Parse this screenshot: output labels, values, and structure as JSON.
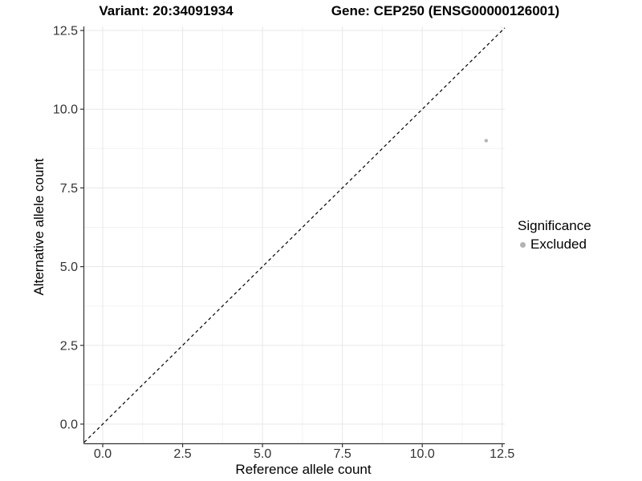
{
  "header": {
    "variant_title": "Variant: 20:34091934",
    "gene_title": "Gene: CEP250 (ENSG00000126001)"
  },
  "legend": {
    "title": "Significance",
    "items": [
      {
        "label": "Excluded",
        "color": "#b3b3b3"
      }
    ]
  },
  "chart_data": {
    "type": "scatter",
    "title_left": "Variant: 20:34091934",
    "title_right": "Gene: CEP250 (ENSG00000126001)",
    "xlabel": "Reference allele count",
    "ylabel": "Alternative allele count",
    "xlim": [
      -0.58,
      12.58
    ],
    "ylim": [
      -0.62,
      12.6
    ],
    "x_ticks": [
      0,
      2.5,
      5,
      7.5,
      10,
      12.5
    ],
    "y_ticks": [
      0,
      2.5,
      5,
      7.5,
      10,
      12.5
    ],
    "x_tick_labels": [
      "0.0",
      "2.5",
      "5.0",
      "7.5",
      "10.0",
      "12.5"
    ],
    "y_tick_labels": [
      "0.0",
      "2.5",
      "5.0",
      "7.5",
      "10.0",
      "12.5"
    ],
    "grid": "major+minor",
    "legend_title": "Significance",
    "legend_position": "right",
    "series": [
      {
        "name": "Excluded",
        "color": "#b5b5b5",
        "points": [
          {
            "x": 12,
            "y": 9
          }
        ]
      }
    ],
    "reference_line": {
      "kind": "identity",
      "slope": 1,
      "intercept": 0,
      "style": "dashed",
      "color": "#000000"
    },
    "colors": {
      "background": "#ffffff",
      "grid_major": "#e7e7e7",
      "grid_minor": "#f3f3f3",
      "axis_line": "#333333",
      "tick_text": "#333333",
      "point": "#b5b5b5"
    }
  }
}
